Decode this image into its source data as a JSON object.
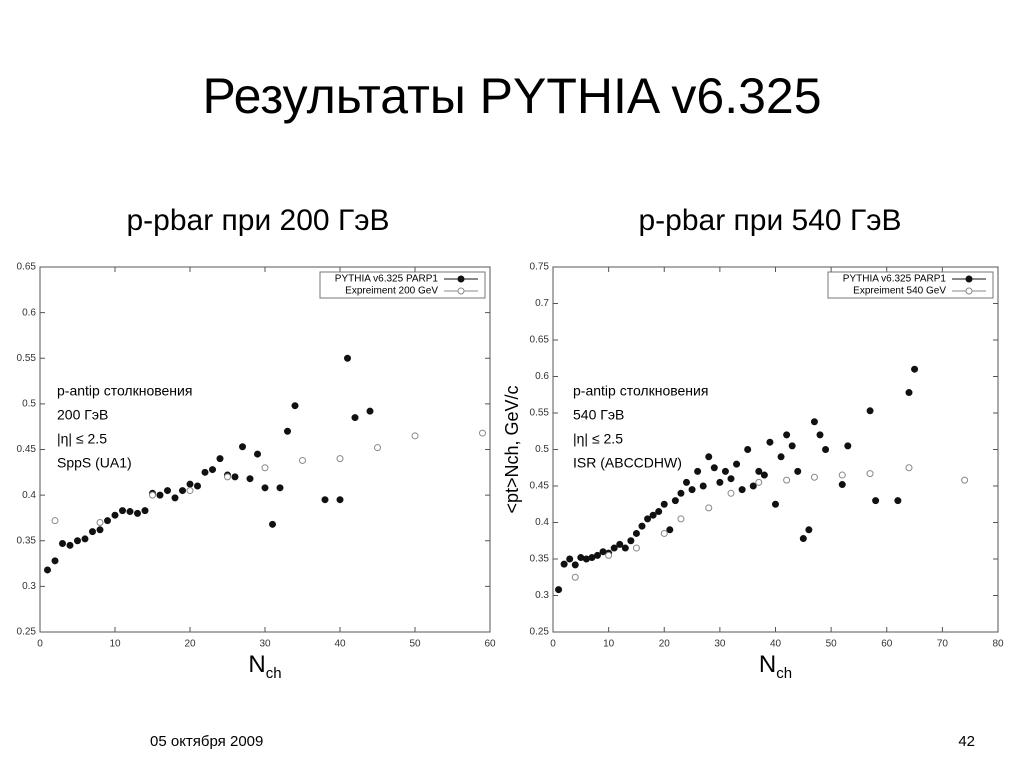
{
  "slide": {
    "title": "Результаты PYTHIA v6.325",
    "date": "05 октября 2009",
    "page": "42"
  },
  "chart_data": [
    {
      "type": "scatter",
      "subtitle": "p-pbar при 200 ГэВ",
      "xlabel": "N",
      "xlabel_sub": "ch",
      "annotations": [
        "p-antip столкновения",
        "200 ГэВ",
        "|η| ≤ 2.5",
        "SppS (UA1)"
      ],
      "xlim": [
        0,
        60
      ],
      "ylim": [
        0.25,
        0.65
      ],
      "xticks": [
        0,
        10,
        20,
        30,
        40,
        50,
        60
      ],
      "yticks": [
        0.25,
        0.3,
        0.35,
        0.4,
        0.45,
        0.5,
        0.55,
        0.6,
        0.65
      ],
      "legend": "upper right",
      "series": [
        {
          "name": "PYTHIA v6.325 PARP1",
          "color": "#111111",
          "marker": "filled",
          "x": [
            1,
            2,
            3,
            4,
            5,
            6,
            7,
            8,
            9,
            10,
            11,
            12,
            13,
            14,
            15,
            16,
            17,
            18,
            19,
            20,
            21,
            22,
            23,
            24,
            25,
            26,
            27,
            28,
            29,
            30,
            31,
            32,
            33,
            34,
            38,
            40,
            41,
            42,
            44
          ],
          "values": [
            0.318,
            0.328,
            0.347,
            0.345,
            0.35,
            0.352,
            0.36,
            0.362,
            0.372,
            0.378,
            0.383,
            0.382,
            0.38,
            0.383,
            0.402,
            0.4,
            0.405,
            0.397,
            0.405,
            0.412,
            0.41,
            0.425,
            0.428,
            0.44,
            0.422,
            0.42,
            0.453,
            0.418,
            0.445,
            0.408,
            0.368,
            0.408,
            0.47,
            0.498,
            0.395,
            0.395,
            0.55,
            0.485,
            0.492
          ]
        },
        {
          "name": "Expreiment 200 GeV",
          "color": "#888888",
          "marker": "open",
          "x": [
            2,
            8,
            15,
            20,
            25,
            30,
            35,
            40,
            45,
            50,
            59
          ],
          "values": [
            0.372,
            0.37,
            0.4,
            0.405,
            0.42,
            0.43,
            0.438,
            0.44,
            0.452,
            0.465,
            0.468
          ]
        }
      ]
    },
    {
      "type": "scatter",
      "subtitle": "p-pbar при 540 ГэВ",
      "xlabel": "N",
      "xlabel_sub": "ch",
      "ylabel": "<pt>Nch, GeV/c",
      "annotations": [
        "p-antip столкновения",
        "540 ГэВ",
        "|η| ≤ 2.5",
        "ISR (ABCCDHW)"
      ],
      "xlim": [
        0,
        80
      ],
      "ylim": [
        0.25,
        0.75
      ],
      "xticks": [
        0,
        10,
        20,
        30,
        40,
        50,
        60,
        70,
        80
      ],
      "yticks": [
        0.25,
        0.3,
        0.35,
        0.4,
        0.45,
        0.5,
        0.55,
        0.6,
        0.65,
        0.7,
        0.75
      ],
      "legend": "upper right",
      "series": [
        {
          "name": "PYTHIA v6.325 PARP1",
          "color": "#111111",
          "marker": "filled",
          "x": [
            1,
            2,
            3,
            4,
            5,
            6,
            7,
            8,
            9,
            10,
            11,
            12,
            13,
            14,
            15,
            16,
            17,
            18,
            19,
            20,
            21,
            22,
            23,
            24,
            25,
            26,
            27,
            28,
            29,
            30,
            31,
            32,
            33,
            34,
            35,
            36,
            37,
            38,
            39,
            40,
            41,
            42,
            43,
            44,
            45,
            46,
            47,
            48,
            49,
            52,
            53,
            57,
            58,
            62,
            64,
            65
          ],
          "values": [
            0.308,
            0.343,
            0.35,
            0.342,
            0.352,
            0.35,
            0.352,
            0.355,
            0.36,
            0.358,
            0.365,
            0.37,
            0.365,
            0.375,
            0.385,
            0.395,
            0.405,
            0.41,
            0.415,
            0.425,
            0.39,
            0.43,
            0.44,
            0.455,
            0.445,
            0.47,
            0.45,
            0.49,
            0.475,
            0.455,
            0.47,
            0.46,
            0.48,
            0.445,
            0.5,
            0.45,
            0.47,
            0.465,
            0.51,
            0.425,
            0.49,
            0.52,
            0.505,
            0.47,
            0.378,
            0.39,
            0.538,
            0.52,
            0.5,
            0.452,
            0.505,
            0.553,
            0.43,
            0.43,
            0.578,
            0.61
          ]
        },
        {
          "name": "Expreiment 540 GeV",
          "color": "#888888",
          "marker": "open",
          "x": [
            4,
            10,
            15,
            20,
            23,
            28,
            32,
            37,
            42,
            47,
            52,
            57,
            64,
            74
          ],
          "values": [
            0.325,
            0.355,
            0.365,
            0.385,
            0.405,
            0.42,
            0.44,
            0.455,
            0.458,
            0.462,
            0.465,
            0.467,
            0.475,
            0.458
          ]
        }
      ]
    }
  ]
}
